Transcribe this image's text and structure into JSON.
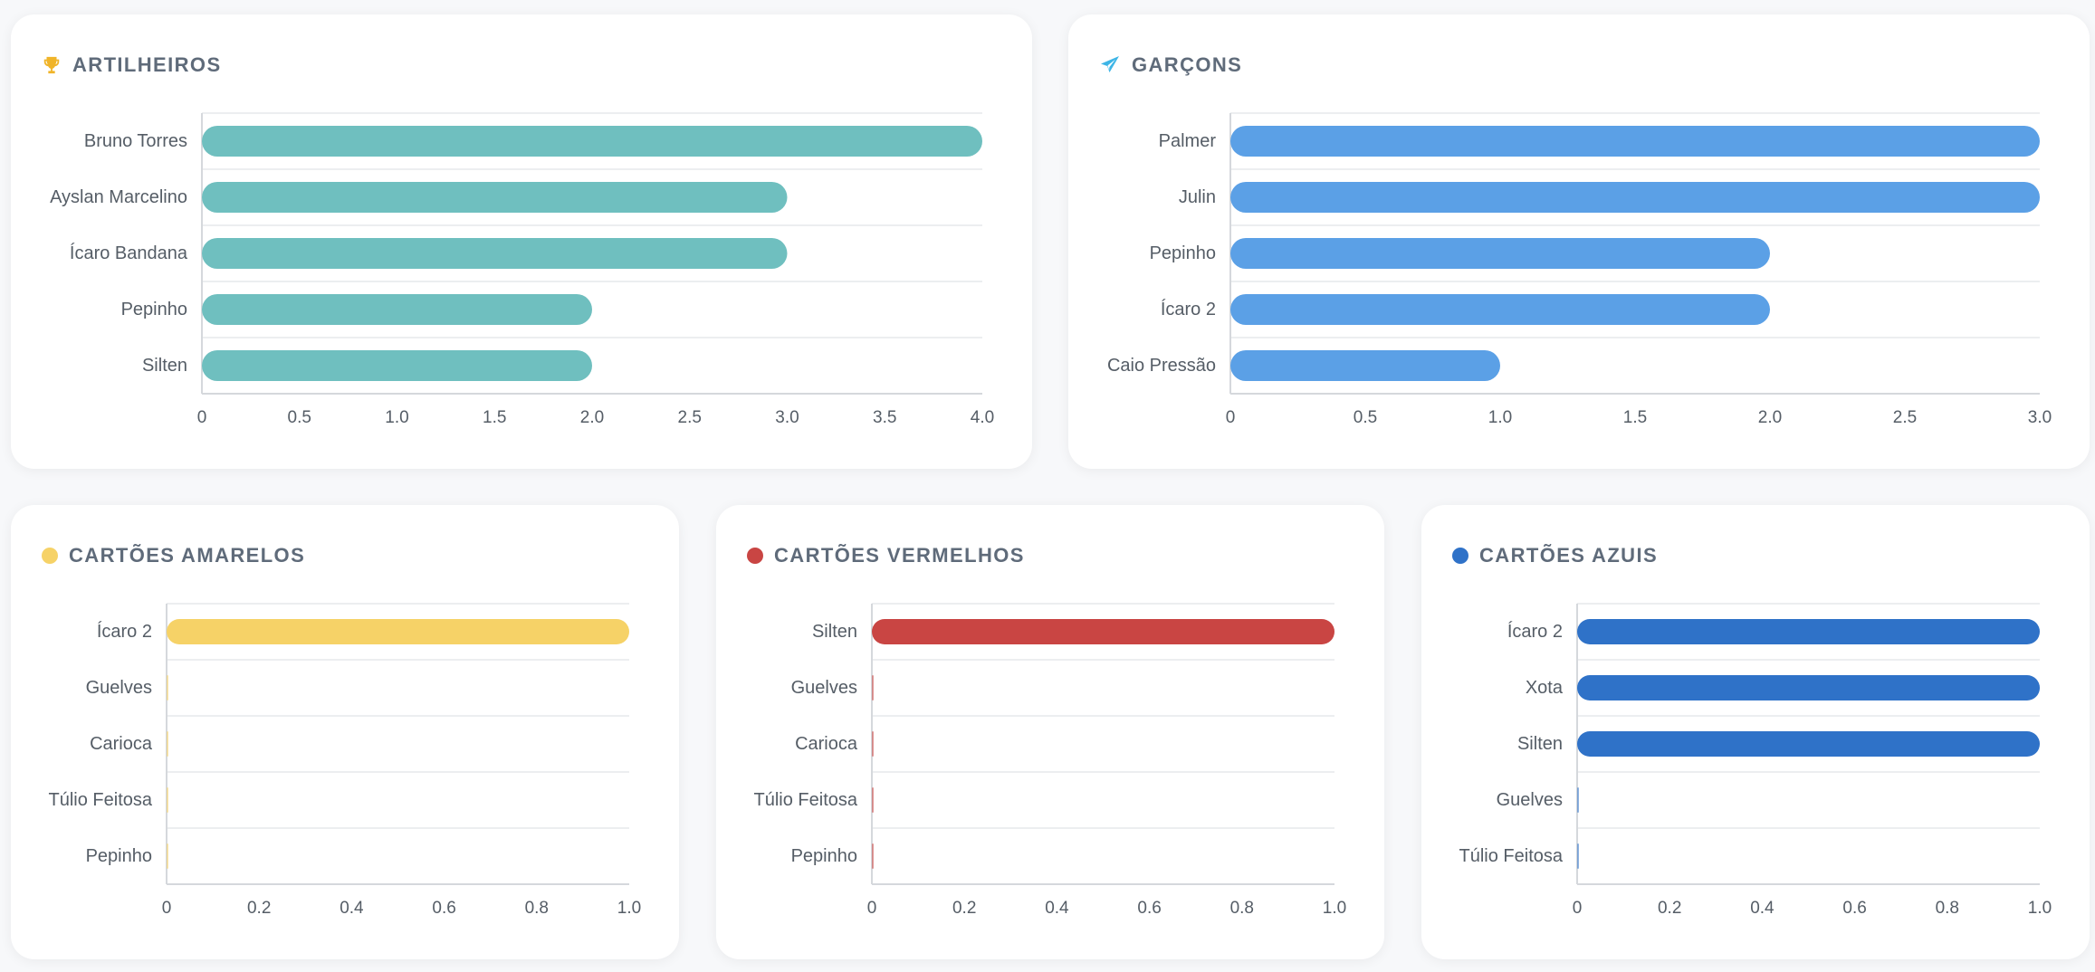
{
  "chart_data": [
    {
      "id": "artilheiros",
      "type": "bar",
      "orientation": "horizontal",
      "title": "ARTILHEIROS",
      "icon": "trophy-icon",
      "color": "#6fbfbf",
      "categories": [
        "Bruno Torres",
        "Ayslan Marcelino",
        "Ícaro Bandana",
        "Pepinho",
        "Silten"
      ],
      "values": [
        4,
        3,
        3,
        2,
        2
      ],
      "xlim": [
        0,
        4
      ],
      "ticks": [
        "0",
        "0.5",
        "1.0",
        "1.5",
        "2.0",
        "2.5",
        "3.0",
        "3.5",
        "4.0"
      ],
      "grid": true,
      "legend": "none"
    },
    {
      "id": "garcons",
      "type": "bar",
      "orientation": "horizontal",
      "title": "GARÇONS",
      "icon": "paper-plane-icon",
      "color": "#5ba0e6",
      "categories": [
        "Palmer",
        "Julin",
        "Pepinho",
        "Ícaro 2",
        "Caio Pressão"
      ],
      "values": [
        3,
        3,
        2,
        2,
        1
      ],
      "xlim": [
        0,
        3
      ],
      "ticks": [
        "0",
        "0.5",
        "1.0",
        "1.5",
        "2.0",
        "2.5",
        "3.0"
      ],
      "grid": true,
      "legend": "none"
    },
    {
      "id": "amarelos",
      "type": "bar",
      "orientation": "horizontal",
      "title": "CARTÕES AMARELOS",
      "icon": "yellow-dot-icon",
      "color": "#f6d267",
      "categories": [
        "Ícaro 2",
        "Guelves",
        "Carioca",
        "Túlio Feitosa",
        "Pepinho"
      ],
      "values": [
        1,
        0,
        0,
        0,
        0
      ],
      "xlim": [
        0,
        1
      ],
      "ticks": [
        "0",
        "0.2",
        "0.4",
        "0.6",
        "0.8",
        "1.0"
      ],
      "grid": true,
      "legend": "none"
    },
    {
      "id": "vermelhos",
      "type": "bar",
      "orientation": "horizontal",
      "title": "CARTÕES VERMELHOS",
      "icon": "red-dot-icon",
      "color": "#c94543",
      "categories": [
        "Silten",
        "Guelves",
        "Carioca",
        "Túlio Feitosa",
        "Pepinho"
      ],
      "values": [
        1,
        0,
        0,
        0,
        0
      ],
      "xlim": [
        0,
        1
      ],
      "ticks": [
        "0",
        "0.2",
        "0.4",
        "0.6",
        "0.8",
        "1.0"
      ],
      "grid": true,
      "legend": "none"
    },
    {
      "id": "azuis",
      "type": "bar",
      "orientation": "horizontal",
      "title": "CARTÕES AZUIS",
      "icon": "blue-dot-icon",
      "color": "#2f72c8",
      "categories": [
        "Ícaro 2",
        "Xota",
        "Silten",
        "Guelves",
        "Túlio Feitosa"
      ],
      "values": [
        1,
        1,
        1,
        0,
        0
      ],
      "xlim": [
        0,
        1
      ],
      "ticks": [
        "0",
        "0.2",
        "0.4",
        "0.6",
        "0.8",
        "1.0"
      ],
      "grid": true,
      "legend": "none"
    }
  ],
  "colors": {
    "trophy": "#f0b429",
    "plane": "#3db5e6",
    "title_text": "#5f6b7a",
    "grid": "#e6e8eb",
    "axis": "#d5d8dc"
  }
}
